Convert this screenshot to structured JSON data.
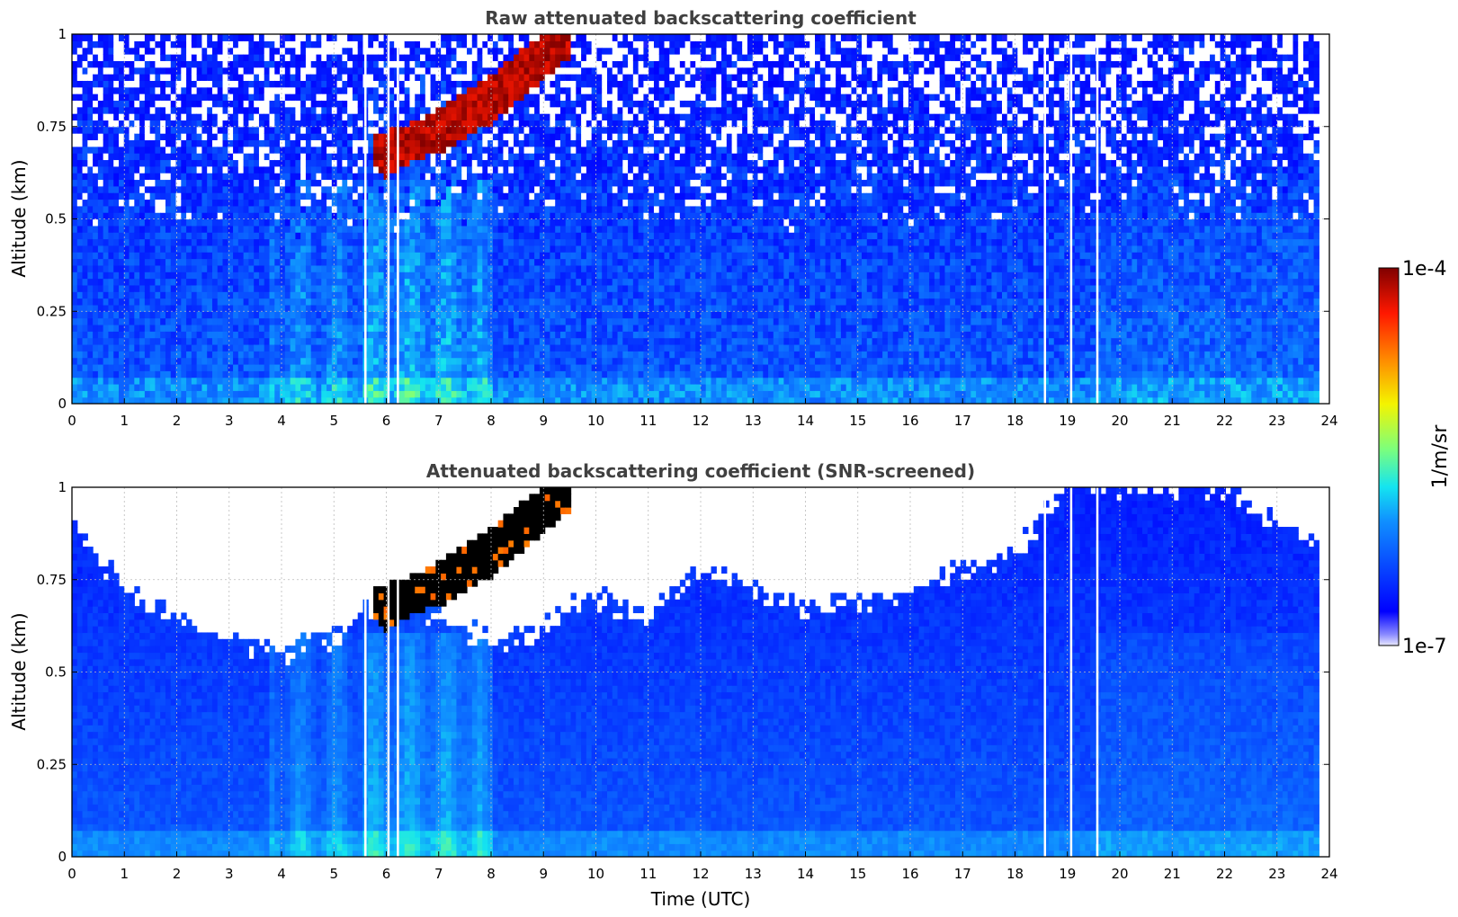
{
  "chart_data": [
    {
      "type": "heatmap",
      "title": "Raw attenuated backscattering coefficient",
      "xlabel": "",
      "ylabel": "Altitude (km)",
      "xlim": [
        0,
        24
      ],
      "ylim": [
        0,
        1
      ],
      "xticks": [
        0,
        1,
        2,
        3,
        4,
        5,
        6,
        7,
        8,
        9,
        10,
        11,
        12,
        13,
        14,
        15,
        16,
        17,
        18,
        19,
        20,
        21,
        22,
        23,
        24
      ],
      "yticks": [
        "0",
        "0.25",
        "0.5",
        "0.75",
        "1"
      ],
      "grid": true,
      "data_extent_hours": [
        0,
        23.8
      ],
      "cloud_layer": {
        "x": [
          5.8,
          6.0,
          6.5,
          7.0,
          7.5,
          8.0,
          8.5,
          9.0,
          9.5
        ],
        "base_km": [
          0.64,
          0.61,
          0.66,
          0.68,
          0.72,
          0.76,
          0.82,
          0.88,
          0.94
        ],
        "top_km": [
          0.74,
          0.74,
          0.76,
          0.8,
          0.84,
          0.89,
          0.95,
          1.0,
          1.0
        ]
      },
      "enhanced_low_level_km": [
        0,
        0.08
      ],
      "noise_onset_km": 0.45
    },
    {
      "type": "heatmap",
      "title": "Attenuated backscattering coefficient (SNR-screened)",
      "xlabel": "Time (UTC)",
      "ylabel": "Altitude (km)",
      "xlim": [
        0,
        24
      ],
      "ylim": [
        0,
        1
      ],
      "xticks": [
        0,
        1,
        2,
        3,
        4,
        5,
        6,
        7,
        8,
        9,
        10,
        11,
        12,
        13,
        14,
        15,
        16,
        17,
        18,
        19,
        20,
        21,
        22,
        23,
        24
      ],
      "yticks": [
        "0",
        "0.25",
        "0.5",
        "0.75",
        "1"
      ],
      "grid": true,
      "data_extent_hours": [
        0,
        23.8
      ],
      "screen_ceiling": {
        "x": [
          0,
          1,
          2,
          3,
          4,
          5,
          6,
          7,
          8,
          9,
          10,
          11,
          12,
          13,
          14,
          15,
          16,
          17,
          18,
          19,
          20,
          21,
          22,
          23,
          23.8
        ],
        "top_km": [
          0.9,
          0.72,
          0.64,
          0.6,
          0.55,
          0.6,
          0.7,
          0.66,
          0.58,
          0.62,
          0.7,
          0.65,
          0.78,
          0.72,
          0.68,
          0.7,
          0.72,
          0.78,
          0.82,
          1.0,
          1.0,
          1.0,
          1.0,
          0.9,
          0.85
        ]
      }
    }
  ],
  "colorbar": {
    "max_label": "1e-4",
    "min_label": "1e-7",
    "unit": "1/m/sr",
    "scale": "log",
    "colormap": "jet"
  },
  "data_gaps_hours": [
    5.58,
    6.02,
    6.2,
    18.55,
    19.05,
    19.55
  ]
}
